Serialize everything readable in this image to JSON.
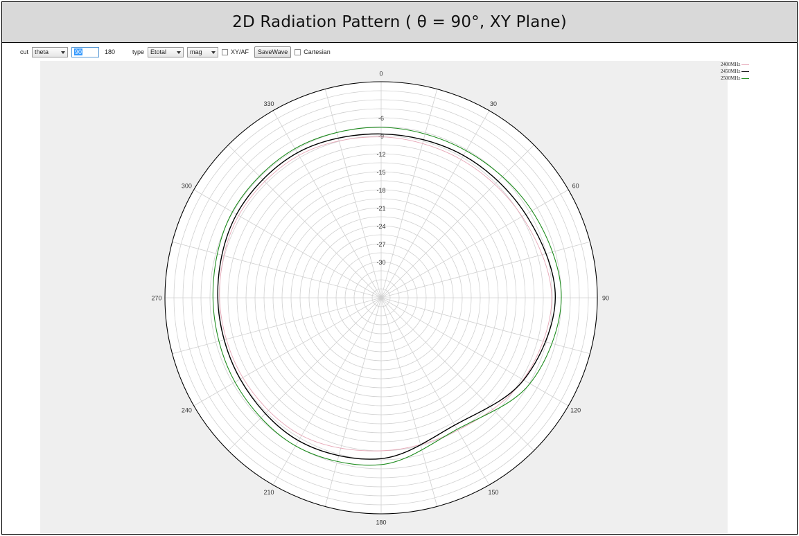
{
  "title": "2D Radiation Pattern ( θ = 90°, XY Plane)",
  "toolbar": {
    "cut_label": "cut",
    "cut_value": "theta",
    "start_value": "90",
    "stop_value": "180",
    "type_label": "type",
    "type_value": "Etotal",
    "mode_value": "mag",
    "xyaf_label": "XY/AF",
    "savewave_label": "SaveWave",
    "cartesian_label": "Cartesian"
  },
  "colors": {
    "series_2400": "#e6a6b6",
    "series_2450": "#000000",
    "series_2500": "#1e8c1e",
    "grid": "#d0d0d0"
  },
  "chart_data": {
    "type": "polar-line",
    "r_unit": "dB",
    "r_range": [
      -36,
      0
    ],
    "r_ticks": [
      -6,
      -9,
      -12,
      -15,
      -18,
      -21,
      -24,
      -27,
      -30
    ],
    "angle_ticks": [
      0,
      30,
      60,
      90,
      120,
      150,
      180,
      210,
      240,
      270,
      300,
      330
    ],
    "angle_direction": "clockwise",
    "angle_zero": "top",
    "grid": true,
    "legend": "top-right",
    "series": [
      {
        "name": "2400MHz",
        "angles": [
          0,
          30,
          60,
          90,
          120,
          150,
          180,
          210,
          240,
          270,
          300,
          330
        ],
        "values": [
          -9.2,
          -9.4,
          -8.9,
          -7.6,
          -8.7,
          -10.5,
          -10.5,
          -9.5,
          -9.4,
          -9.1,
          -8.6,
          -8.6
        ]
      },
      {
        "name": "2450MHz",
        "angles": [
          0,
          30,
          60,
          90,
          120,
          150,
          180,
          210,
          240,
          270,
          300,
          330
        ],
        "values": [
          -8.7,
          -8.6,
          -8.2,
          -7.0,
          -8.6,
          -11.5,
          -9.2,
          -8.5,
          -8.9,
          -8.8,
          -8.2,
          -8.1
        ]
      },
      {
        "name": "2500MHz",
        "angles": [
          0,
          30,
          60,
          90,
          120,
          150,
          180,
          210,
          240,
          270,
          300,
          330
        ],
        "values": [
          -7.6,
          -7.7,
          -7.0,
          -6.0,
          -7.4,
          -10.7,
          -8.2,
          -7.5,
          -7.9,
          -8.0,
          -7.4,
          -7.3
        ]
      }
    ]
  }
}
